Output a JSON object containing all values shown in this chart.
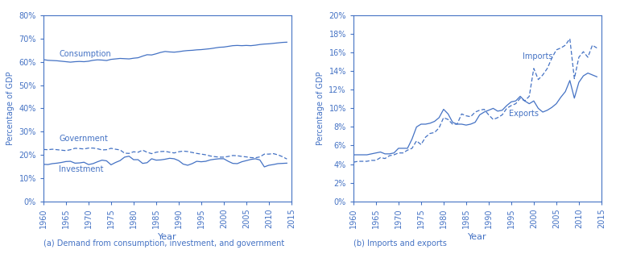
{
  "color": "#4472C4",
  "years": [
    1960,
    1961,
    1962,
    1963,
    1964,
    1965,
    1966,
    1967,
    1968,
    1969,
    1970,
    1971,
    1972,
    1973,
    1974,
    1975,
    1976,
    1977,
    1978,
    1979,
    1980,
    1981,
    1982,
    1983,
    1984,
    1985,
    1986,
    1987,
    1988,
    1989,
    1990,
    1991,
    1992,
    1993,
    1994,
    1995,
    1996,
    1997,
    1998,
    1999,
    2000,
    2001,
    2002,
    2003,
    2004,
    2005,
    2006,
    2007,
    2008,
    2009,
    2010,
    2011,
    2012,
    2013,
    2014
  ],
  "consumption": [
    0.61,
    0.607,
    0.606,
    0.605,
    0.603,
    0.601,
    0.599,
    0.601,
    0.602,
    0.601,
    0.603,
    0.607,
    0.609,
    0.608,
    0.606,
    0.611,
    0.613,
    0.615,
    0.614,
    0.613,
    0.616,
    0.618,
    0.625,
    0.631,
    0.63,
    0.635,
    0.641,
    0.645,
    0.643,
    0.642,
    0.644,
    0.647,
    0.649,
    0.65,
    0.652,
    0.653,
    0.655,
    0.657,
    0.66,
    0.663,
    0.664,
    0.667,
    0.67,
    0.671,
    0.67,
    0.671,
    0.67,
    0.672,
    0.675,
    0.677,
    0.678,
    0.68,
    0.682,
    0.684,
    0.685
  ],
  "government": [
    0.223,
    0.222,
    0.224,
    0.222,
    0.22,
    0.218,
    0.222,
    0.228,
    0.227,
    0.225,
    0.229,
    0.229,
    0.226,
    0.221,
    0.222,
    0.228,
    0.224,
    0.221,
    0.207,
    0.206,
    0.213,
    0.211,
    0.22,
    0.211,
    0.205,
    0.211,
    0.214,
    0.215,
    0.211,
    0.208,
    0.213,
    0.216,
    0.214,
    0.21,
    0.206,
    0.203,
    0.2,
    0.195,
    0.192,
    0.19,
    0.19,
    0.193,
    0.197,
    0.196,
    0.193,
    0.191,
    0.188,
    0.187,
    0.191,
    0.203,
    0.203,
    0.205,
    0.2,
    0.192,
    0.182
  ],
  "investment": [
    0.159,
    0.158,
    0.162,
    0.164,
    0.167,
    0.171,
    0.172,
    0.164,
    0.165,
    0.168,
    0.158,
    0.162,
    0.17,
    0.177,
    0.174,
    0.157,
    0.167,
    0.175,
    0.19,
    0.194,
    0.179,
    0.179,
    0.163,
    0.166,
    0.183,
    0.177,
    0.178,
    0.181,
    0.185,
    0.183,
    0.175,
    0.16,
    0.155,
    0.162,
    0.172,
    0.17,
    0.172,
    0.178,
    0.181,
    0.183,
    0.183,
    0.172,
    0.163,
    0.162,
    0.17,
    0.175,
    0.18,
    0.183,
    0.178,
    0.148,
    0.155,
    0.158,
    0.162,
    0.163,
    0.164
  ],
  "imports": [
    0.042,
    0.043,
    0.043,
    0.043,
    0.044,
    0.044,
    0.047,
    0.046,
    0.049,
    0.05,
    0.052,
    0.052,
    0.055,
    0.057,
    0.065,
    0.061,
    0.069,
    0.073,
    0.074,
    0.079,
    0.09,
    0.088,
    0.083,
    0.083,
    0.094,
    0.092,
    0.091,
    0.096,
    0.098,
    0.099,
    0.093,
    0.088,
    0.09,
    0.093,
    0.1,
    0.103,
    0.105,
    0.111,
    0.108,
    0.113,
    0.143,
    0.131,
    0.136,
    0.143,
    0.154,
    0.163,
    0.165,
    0.168,
    0.175,
    0.132,
    0.155,
    0.161,
    0.155,
    0.168,
    0.165
  ],
  "exports": [
    0.05,
    0.05,
    0.05,
    0.05,
    0.051,
    0.052,
    0.053,
    0.051,
    0.051,
    0.052,
    0.057,
    0.057,
    0.057,
    0.067,
    0.08,
    0.083,
    0.083,
    0.084,
    0.086,
    0.09,
    0.099,
    0.094,
    0.085,
    0.083,
    0.083,
    0.082,
    0.083,
    0.085,
    0.093,
    0.096,
    0.098,
    0.1,
    0.097,
    0.098,
    0.103,
    0.107,
    0.108,
    0.113,
    0.108,
    0.105,
    0.108,
    0.1,
    0.096,
    0.098,
    0.101,
    0.105,
    0.112,
    0.118,
    0.13,
    0.111,
    0.128,
    0.135,
    0.138,
    0.136,
    0.134
  ],
  "title_a": "(a) Demand from consumption, investment, and government",
  "title_b": "(b) Imports and exports",
  "ylabel": "Percentage of GDP",
  "xlabel": "Year",
  "label_consumption": "Consumption",
  "label_government": "Government",
  "label_investment": "Investment",
  "label_imports": "Imports",
  "label_exports": "Exports",
  "ylim_a": [
    0.0,
    0.8
  ],
  "ylim_b": [
    0.0,
    0.2
  ],
  "yticks_a": [
    0.0,
    0.1,
    0.2,
    0.3,
    0.4,
    0.5,
    0.6,
    0.7,
    0.8
  ],
  "yticks_b": [
    0.0,
    0.02,
    0.04,
    0.06,
    0.08,
    0.1,
    0.12,
    0.14,
    0.16,
    0.18,
    0.2
  ],
  "xticks": [
    1960,
    1965,
    1970,
    1975,
    1980,
    1985,
    1990,
    1995,
    2000,
    2005,
    2010,
    2015
  ]
}
